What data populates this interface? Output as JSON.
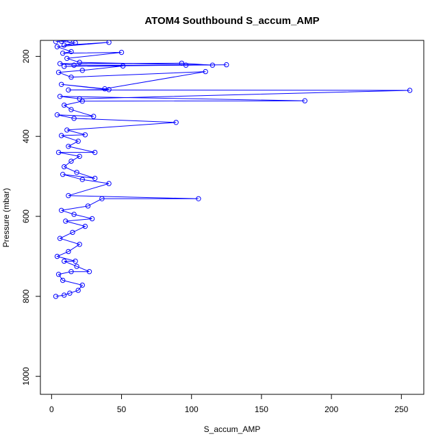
{
  "chart_data": {
    "type": "line",
    "title": "ATOM4 Southbound S_accum_AMP",
    "xlabel": "S_accum_AMP",
    "ylabel": "Pressure (mbar)",
    "xlim": [
      -8,
      266
    ],
    "ylim": [
      1045,
      160
    ],
    "y_reversed": true,
    "x_ticks": [
      0,
      50,
      100,
      150,
      200,
      250
    ],
    "y_ticks": [
      200,
      400,
      600,
      800,
      1000
    ],
    "grid": false,
    "marker": "open-circle",
    "color": "#0000ff",
    "series": [
      {
        "values": [
          [
            3,
            800
          ],
          [
            9,
            797
          ],
          [
            13,
            792
          ],
          [
            19,
            785
          ],
          [
            22,
            772
          ],
          [
            8,
            760
          ],
          [
            5,
            745
          ],
          [
            14,
            738
          ],
          [
            27,
            738
          ],
          [
            18,
            725
          ],
          [
            9,
            712
          ],
          [
            17,
            712
          ],
          [
            4,
            700
          ],
          [
            12,
            688
          ],
          [
            20,
            670
          ],
          [
            6,
            655
          ],
          [
            15,
            640
          ],
          [
            24,
            625
          ],
          [
            10,
            612
          ],
          [
            29,
            606
          ],
          [
            16,
            595
          ],
          [
            7,
            585
          ],
          [
            26,
            574
          ],
          [
            36,
            556
          ],
          [
            105,
            556
          ],
          [
            12,
            548
          ],
          [
            41,
            518
          ],
          [
            22,
            508
          ],
          [
            8,
            495
          ],
          [
            31,
            505
          ],
          [
            18,
            490
          ],
          [
            9,
            476
          ],
          [
            14,
            462
          ],
          [
            20,
            450
          ],
          [
            5,
            440
          ],
          [
            31,
            440
          ],
          [
            12,
            425
          ],
          [
            19,
            412
          ],
          [
            7,
            398
          ],
          [
            24,
            396
          ],
          [
            11,
            384
          ],
          [
            89,
            365
          ],
          [
            16,
            355
          ],
          [
            4,
            346
          ],
          [
            30,
            350
          ],
          [
            14,
            333
          ],
          [
            9,
            322
          ],
          [
            22,
            312
          ],
          [
            181,
            311
          ],
          [
            6,
            300
          ],
          [
            20,
            306
          ],
          [
            256,
            285
          ],
          [
            12,
            284
          ],
          [
            41,
            283
          ],
          [
            7,
            270
          ],
          [
            38,
            281
          ],
          [
            110,
            238
          ],
          [
            14,
            252
          ],
          [
            5,
            240
          ],
          [
            22,
            235
          ],
          [
            51,
            224
          ],
          [
            9,
            225
          ],
          [
            125,
            221
          ],
          [
            96,
            222
          ],
          [
            16,
            222
          ],
          [
            6,
            218
          ],
          [
            93,
            217
          ],
          [
            115,
            222
          ],
          [
            20,
            215
          ],
          [
            11,
            205
          ],
          [
            50,
            190
          ],
          [
            8,
            192
          ],
          [
            14,
            188
          ],
          [
            4,
            176
          ],
          [
            41,
            165
          ],
          [
            9,
            172
          ],
          [
            17,
            166
          ],
          [
            7,
            162
          ],
          [
            13,
            160
          ],
          [
            3,
            163
          ]
        ]
      }
    ]
  }
}
